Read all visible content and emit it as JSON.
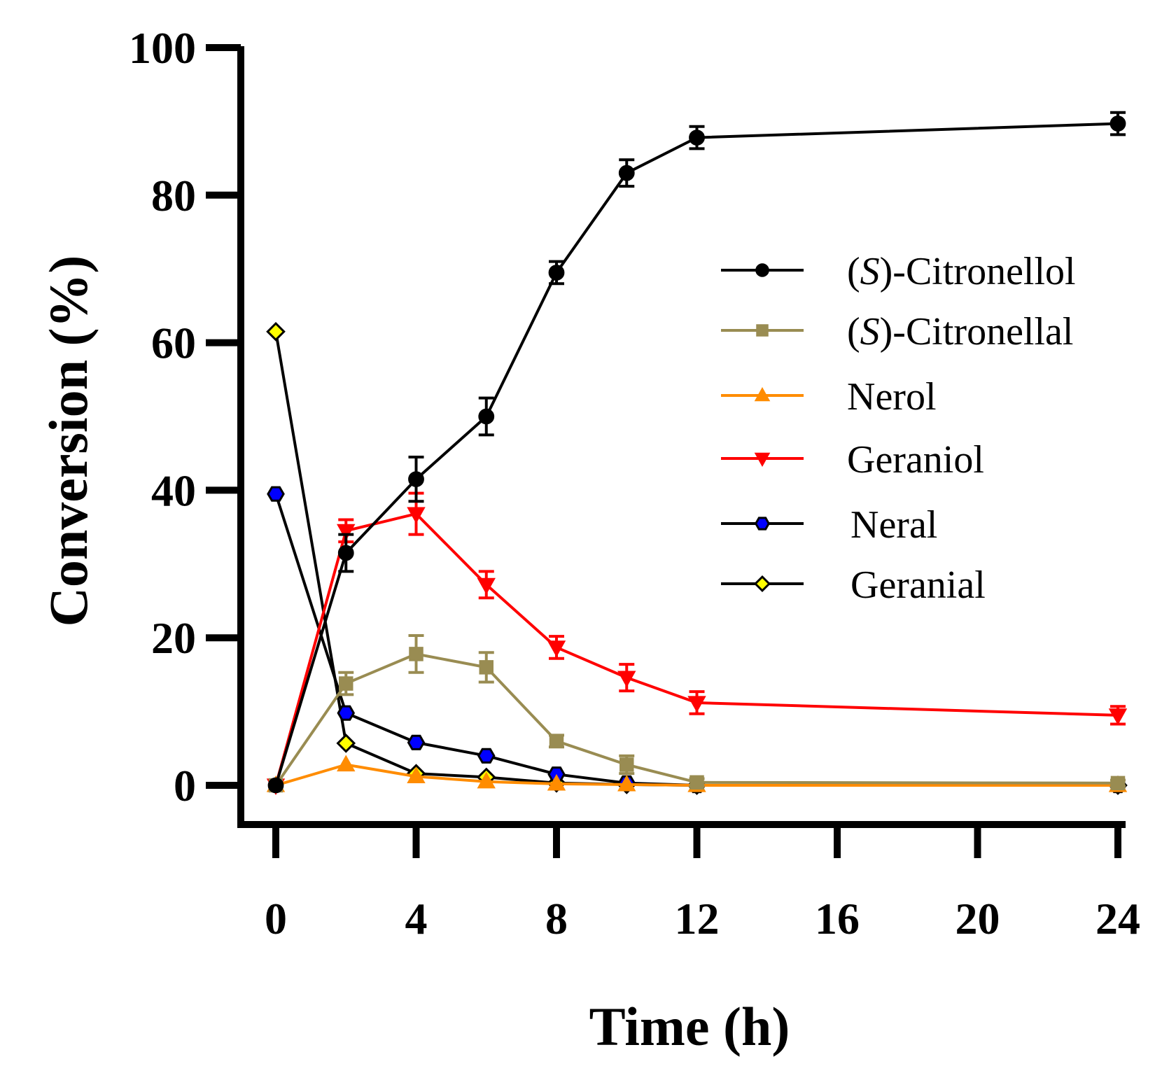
{
  "chart_data": {
    "type": "line",
    "xlabel": "Time (h)",
    "ylabel": "Conversion (%)",
    "xlim": [
      0,
      24
    ],
    "ylim": [
      0,
      100
    ],
    "xticks": [
      0,
      4,
      8,
      12,
      16,
      20,
      24
    ],
    "yticks": [
      0,
      20,
      40,
      60,
      80,
      100
    ],
    "x": [
      0,
      2,
      4,
      6,
      8,
      10,
      12,
      24
    ],
    "legend_position": "center-right",
    "series": [
      {
        "name": "(S)-Citronellol",
        "name_parts": [
          "(",
          "S",
          ")-Citronellol"
        ],
        "color": "#000000",
        "marker": "circle",
        "marker_fill": "#000000",
        "values": [
          0,
          31.5,
          41.5,
          50,
          69.5,
          83,
          87.8,
          89.7
        ],
        "errors": [
          0,
          2.5,
          3,
          2.5,
          1.5,
          1.8,
          1.5,
          1.5
        ]
      },
      {
        "name": "(S)-Citronellal",
        "name_parts": [
          "(",
          "S",
          ")-Citronellal"
        ],
        "color": "#998c52",
        "marker": "square",
        "marker_fill": "#998c52",
        "values": [
          0,
          13.8,
          17.8,
          16,
          6,
          2.8,
          0.4,
          0.3
        ],
        "errors": [
          0,
          1.5,
          2.5,
          2,
          0.8,
          1.2,
          0.5,
          0.4
        ]
      },
      {
        "name": "Nerol",
        "name_parts": [
          "Nerol"
        ],
        "color": "#ff8c00",
        "marker": "triangle-up",
        "marker_fill": "#ff8c00",
        "values": [
          0,
          2.8,
          1.2,
          0.5,
          0.2,
          0.1,
          0,
          0
        ],
        "errors": [
          0,
          0,
          0,
          0,
          0,
          0,
          0,
          0
        ]
      },
      {
        "name": "Geraniol",
        "name_parts": [
          "Geraniol"
        ],
        "color": "#ff0000",
        "marker": "triangle-down",
        "marker_fill": "#ff0000",
        "values": [
          0,
          34.5,
          36.8,
          27.2,
          18.7,
          14.6,
          11.2,
          9.5
        ],
        "errors": [
          0,
          1.5,
          2.8,
          1.8,
          1.5,
          1.8,
          1.5,
          1.2
        ]
      },
      {
        "name": "Neral",
        "name_parts": [
          "Neral"
        ],
        "color": "#000000",
        "marker": "hexagon",
        "marker_fill": "#0000ff",
        "values": [
          39.5,
          9.8,
          5.8,
          4,
          1.5,
          0.3,
          0,
          0
        ],
        "errors": [
          0,
          0,
          0,
          0,
          0,
          0,
          0,
          0
        ]
      },
      {
        "name": "Geranial",
        "name_parts": [
          "Geranial"
        ],
        "color": "#000000",
        "marker": "diamond",
        "marker_fill": "#ffff00",
        "values": [
          61.5,
          5.7,
          1.6,
          1.1,
          0.3,
          0.1,
          0,
          0
        ],
        "errors": [
          0,
          0,
          0,
          0,
          0,
          0,
          0,
          0
        ]
      }
    ]
  }
}
